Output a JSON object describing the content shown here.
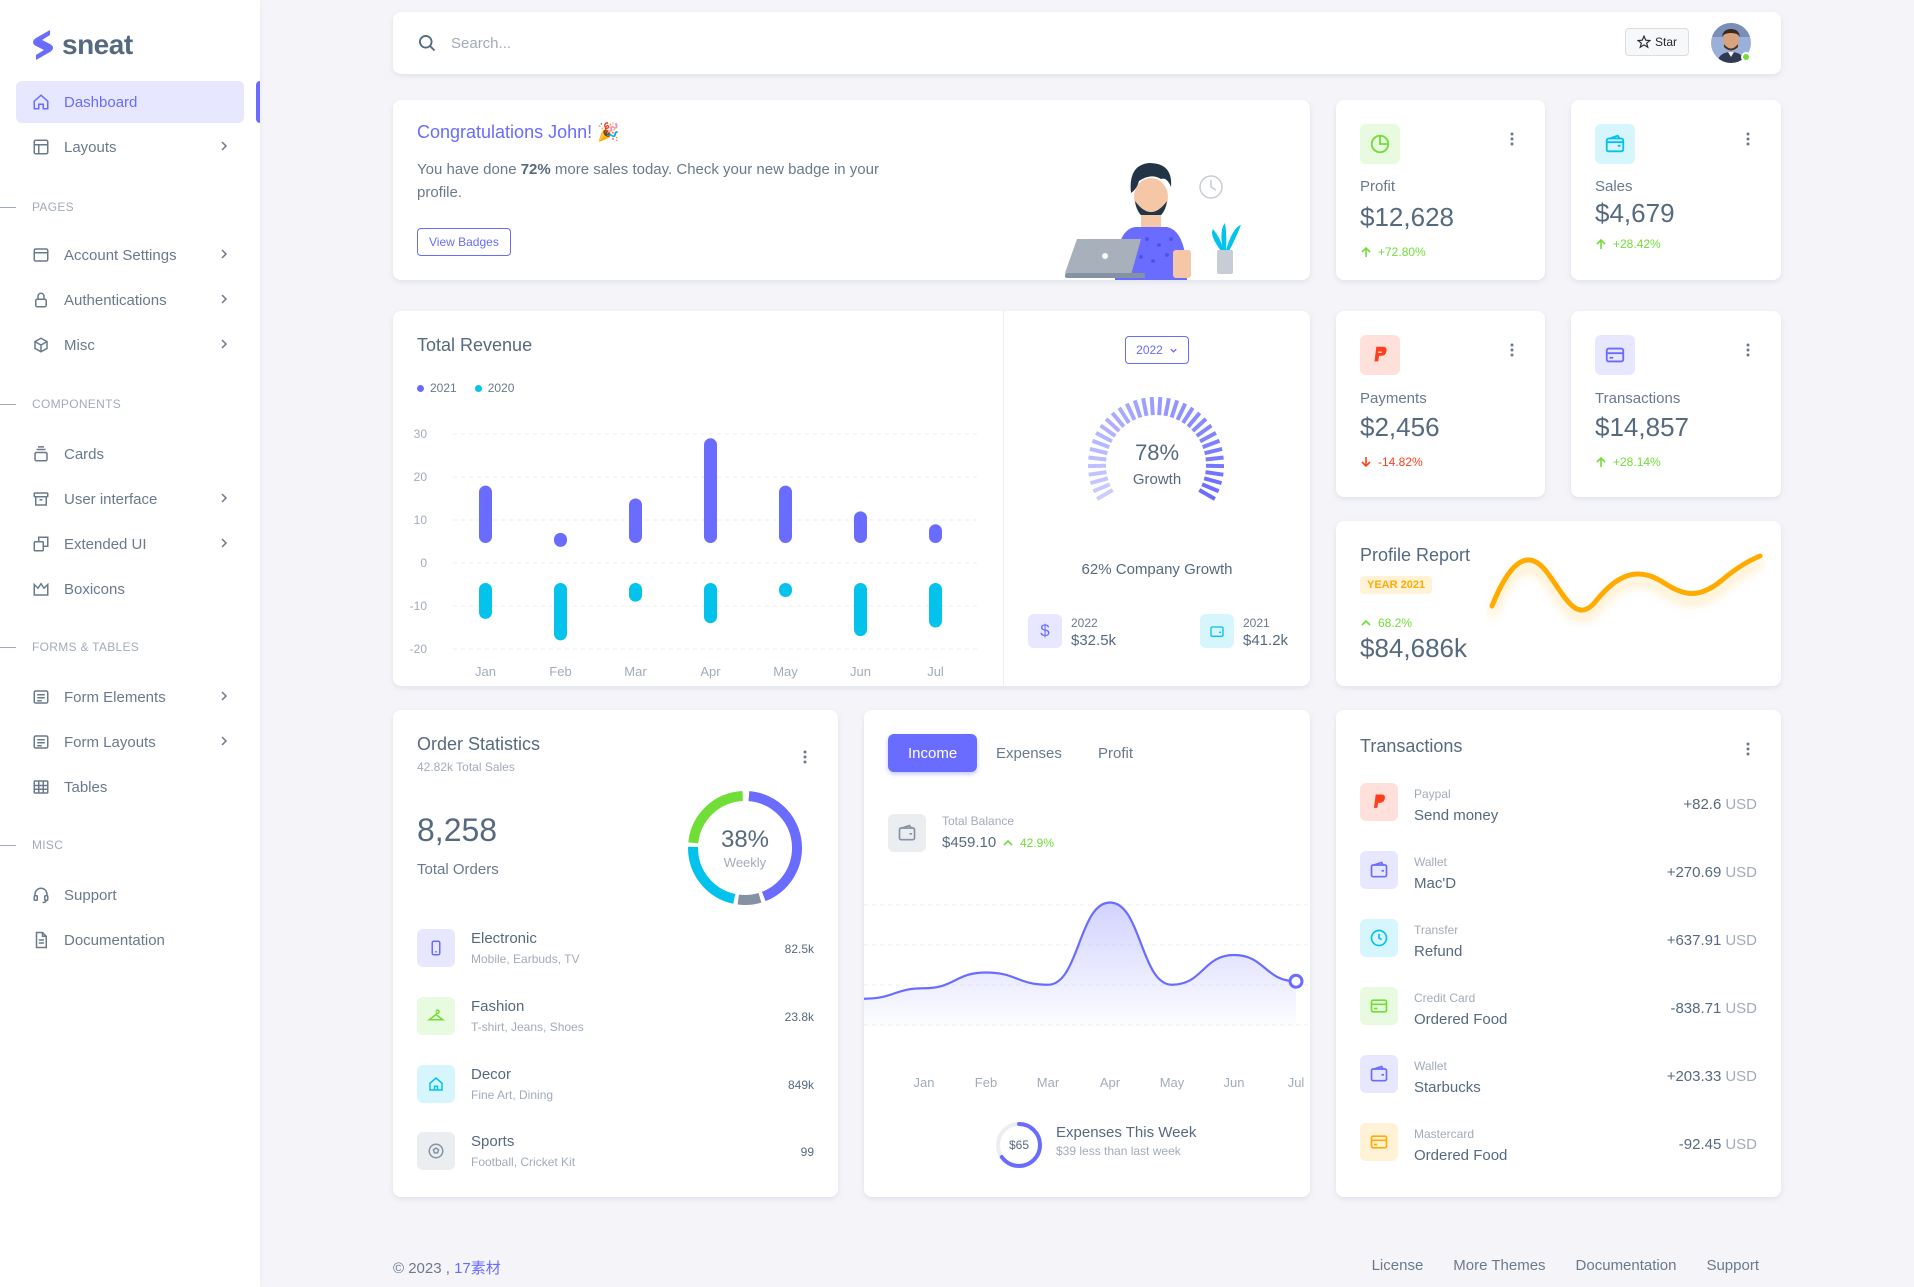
{
  "brand": {
    "name": "sneat"
  },
  "sidebar": {
    "items": [
      {
        "label": "Dashboard",
        "icon": "home-icon"
      },
      {
        "label": "Layouts",
        "icon": "layout-icon"
      },
      {
        "label": "Account Settings",
        "icon": "dock-icon"
      },
      {
        "label": "Authentications",
        "icon": "lock-icon"
      },
      {
        "label": "Misc",
        "icon": "cube-icon"
      },
      {
        "label": "Cards",
        "icon": "collection-icon"
      },
      {
        "label": "User interface",
        "icon": "box-icon"
      },
      {
        "label": "Extended UI",
        "icon": "copy-icon"
      },
      {
        "label": "Boxicons",
        "icon": "crown-icon"
      },
      {
        "label": "Form Elements",
        "icon": "detail-icon"
      },
      {
        "label": "Form Layouts",
        "icon": "detail-icon"
      },
      {
        "label": "Tables",
        "icon": "table-icon"
      },
      {
        "label": "Support",
        "icon": "support-icon"
      },
      {
        "label": "Documentation",
        "icon": "file-icon"
      }
    ],
    "headers": [
      "Pages",
      "Components",
      "Forms & Tables",
      "Misc"
    ]
  },
  "navbar": {
    "search_placeholder": "Search...",
    "star_label": "Star"
  },
  "welcome": {
    "title": "Congratulations John! 🎉",
    "text_before": "You have done ",
    "text_bold": "72%",
    "text_after": " more sales today. Check your new badge in your profile.",
    "button": "View Badges"
  },
  "stats": {
    "profit": {
      "label": "Profit",
      "value": "$12,628",
      "change": "+72.80%"
    },
    "sales": {
      "label": "Sales",
      "value": "$4,679",
      "change": "+28.42%"
    },
    "payments": {
      "label": "Payments",
      "value": "$2,456",
      "change": "-14.82%"
    },
    "transactions": {
      "label": "Transactions",
      "value": "$14,857",
      "change": "+28.14%"
    }
  },
  "revenue": {
    "title": "Total Revenue",
    "year_button": "2022",
    "growth_pct": "78%",
    "growth_label": "Growth",
    "company_growth": "62% Company Growth",
    "summary": [
      {
        "year": "2022",
        "value": "$32.5k"
      },
      {
        "year": "2021",
        "value": "$41.2k"
      }
    ]
  },
  "profile_report": {
    "title": "Profile Report",
    "badge": "YEAR 2021",
    "change": "68.2%",
    "value": "$84,686k"
  },
  "order_stats": {
    "title": "Order Statistics",
    "subtitle": "42.82k Total Sales",
    "total": "8,258",
    "total_label": "Total Orders",
    "donut_pct": "38%",
    "donut_label": "Weekly",
    "items": [
      {
        "name": "Electronic",
        "sub": "Mobile, Earbuds, TV",
        "value": "82.5k"
      },
      {
        "name": "Fashion",
        "sub": "T-shirt, Jeans, Shoes",
        "value": "23.8k"
      },
      {
        "name": "Decor",
        "sub": "Fine Art, Dining",
        "value": "849k"
      },
      {
        "name": "Sports",
        "sub": "Football, Cricket Kit",
        "value": "99"
      }
    ]
  },
  "income": {
    "tabs": [
      "Income",
      "Expenses",
      "Profit"
    ],
    "balance_label": "Total Balance",
    "balance_value": "$459.10",
    "balance_change": "42.9%",
    "months": [
      "Jan",
      "Feb",
      "Mar",
      "Apr",
      "May",
      "Jun",
      "Jul"
    ],
    "expenses_value": "$65",
    "expenses_title": "Expenses This Week",
    "expenses_sub": "$39 less than last week"
  },
  "transactions": {
    "title": "Transactions",
    "items": [
      {
        "type": "Paypal",
        "name": "Send money",
        "amount": "+82.6",
        "currency": "USD"
      },
      {
        "type": "Wallet",
        "name": "Mac'D",
        "amount": "+270.69",
        "currency": "USD"
      },
      {
        "type": "Transfer",
        "name": "Refund",
        "amount": "+637.91",
        "currency": "USD"
      },
      {
        "type": "Credit Card",
        "name": "Ordered Food",
        "amount": "-838.71",
        "currency": "USD"
      },
      {
        "type": "Wallet",
        "name": "Starbucks",
        "amount": "+203.33",
        "currency": "USD"
      },
      {
        "type": "Mastercard",
        "name": "Ordered Food",
        "amount": "-92.45",
        "currency": "USD"
      }
    ]
  },
  "footer": {
    "copyright": "© 2023 , ",
    "brand_link": "17素材",
    "links": [
      "License",
      "More Themes",
      "Documentation",
      "Support"
    ]
  },
  "colors": {
    "primary": "#696cff",
    "info": "#03c3ec",
    "success": "#71dd37",
    "danger": "#ff3e1d",
    "warning": "#ffab00"
  },
  "chart_data": [
    {
      "type": "bar",
      "title": "Total Revenue",
      "categories": [
        "Jan",
        "Feb",
        "Mar",
        "Apr",
        "May",
        "Jun",
        "Jul"
      ],
      "series": [
        {
          "name": "2021",
          "values": [
            18,
            7,
            15,
            29,
            18,
            12,
            9
          ]
        },
        {
          "name": "2020",
          "values": [
            -13,
            -18,
            -9,
            -14,
            -5,
            -17,
            -15
          ]
        }
      ],
      "ylim": [
        -20,
        30
      ],
      "yticks": [
        30,
        20,
        10,
        0,
        -10,
        -20
      ],
      "legend": "top-left"
    },
    {
      "type": "line",
      "title": "Total Balance",
      "x": [
        "Jan",
        "Feb",
        "Mar",
        "Apr",
        "May",
        "Jun",
        "Jul"
      ],
      "series": [
        {
          "values": [
            21,
            30,
            23,
            70,
            23,
            40,
            25
          ]
        }
      ]
    }
  ]
}
